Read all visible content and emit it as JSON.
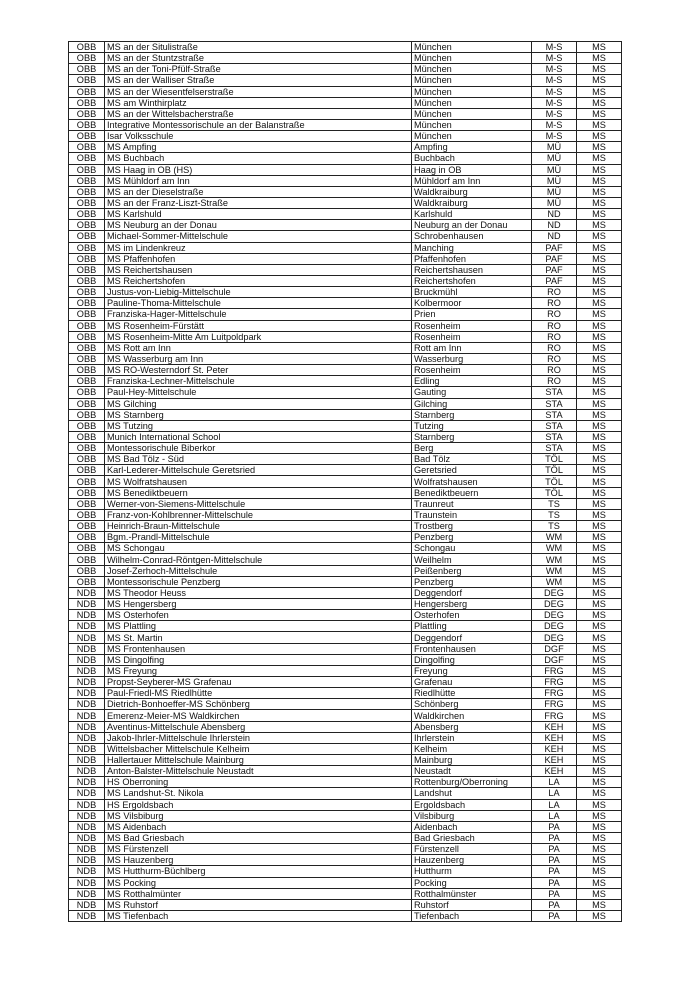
{
  "table": {
    "rows": [
      [
        "OBB",
        "MS an der Situlistraße",
        "München",
        "M-S",
        "MS"
      ],
      [
        "OBB",
        "MS an der Stuntzstraße",
        "München",
        "M-S",
        "MS"
      ],
      [
        "OBB",
        "MS an der Toni-Pfülf-Straße",
        "München",
        "M-S",
        "MS"
      ],
      [
        "OBB",
        "MS an der Walliser Straße",
        "München",
        "M-S",
        "MS"
      ],
      [
        "OBB",
        "MS an der Wiesentfelserstraße",
        "München",
        "M-S",
        "MS"
      ],
      [
        "OBB",
        "MS am Winthirplatz",
        "München",
        "M-S",
        "MS"
      ],
      [
        "OBB",
        "MS an der Wittelsbacherstraße",
        "München",
        "M-S",
        "MS"
      ],
      [
        "OBB",
        "Integrative Montessorischule an der Balanstraße",
        "München",
        "M-S",
        "MS"
      ],
      [
        "OBB",
        "Isar Volksschule",
        "München",
        "M-S",
        "MS"
      ],
      [
        "OBB",
        "MS Ampfing",
        "Ampfing",
        "MÜ",
        "MS"
      ],
      [
        "OBB",
        "MS Buchbach",
        "Buchbach",
        "MÜ",
        "MS"
      ],
      [
        "OBB",
        "MS Haag in OB (HS)",
        "Haag in OB",
        "MÜ",
        "MS"
      ],
      [
        "OBB",
        "MS Mühldorf am Inn",
        "Mühldorf am Inn",
        "MÜ",
        "MS"
      ],
      [
        "OBB",
        "MS an der Dieselstraße",
        "Waldkraiburg",
        "MÜ",
        "MS"
      ],
      [
        "OBB",
        "MS an der Franz-Liszt-Straße",
        "Waldkraiburg",
        "MÜ",
        "MS"
      ],
      [
        "OBB",
        "MS Karlshuld",
        "Karlshuld",
        "ND",
        "MS"
      ],
      [
        "OBB",
        "MS Neuburg an der Donau",
        "Neuburg an der Donau",
        "ND",
        "MS"
      ],
      [
        "OBB",
        "Michael-Sommer-Mittelschule",
        "Schrobenhausen",
        "ND",
        "MS"
      ],
      [
        "OBB",
        "MS im Lindenkreuz",
        "Manching",
        "PAF",
        "MS"
      ],
      [
        "OBB",
        "MS Pfaffenhofen",
        "Pfaffenhofen",
        "PAF",
        "MS"
      ],
      [
        "OBB",
        "MS Reichertshausen",
        "Reichertshausen",
        "PAF",
        "MS"
      ],
      [
        "OBB",
        "MS Reichertshofen",
        "Reichertshofen",
        "PAF",
        "MS"
      ],
      [
        "OBB",
        "Justus-von-Liebig-Mittelschule",
        "Bruckmühl",
        "RO",
        "MS"
      ],
      [
        "OBB",
        "Pauline-Thoma-Mittelschule",
        "Kolbermoor",
        "RO",
        "MS"
      ],
      [
        "OBB",
        "Franziska-Hager-Mittelschule",
        "Prien",
        "RO",
        "MS"
      ],
      [
        "OBB",
        "MS Rosenheim-Fürstätt",
        "Rosenheim",
        "RO",
        "MS"
      ],
      [
        "OBB",
        "MS Rosenheim-Mitte Am Luitpoldpark",
        "Rosenheim",
        "RO",
        "MS"
      ],
      [
        "OBB",
        "MS Rott am Inn",
        "Rott am Inn",
        "RO",
        "MS"
      ],
      [
        "OBB",
        "MS Wasserburg am Inn",
        "Wasserburg",
        "RO",
        "MS"
      ],
      [
        "OBB",
        "MS RO-Westerndorf St. Peter",
        "Rosenheim",
        "RO",
        "MS"
      ],
      [
        "OBB",
        "Franziska-Lechner-Mittelschule",
        "Edling",
        "RO",
        "MS"
      ],
      [
        "OBB",
        "Paul-Hey-Mittelschule",
        "Gauting",
        "STA",
        "MS"
      ],
      [
        "OBB",
        "MS Gilching",
        "Gilching",
        "STA",
        "MS"
      ],
      [
        "OBB",
        "MS Starnberg",
        "Starnberg",
        "STA",
        "MS"
      ],
      [
        "OBB",
        "MS Tutzing",
        "Tutzing",
        "STA",
        "MS"
      ],
      [
        "OBB",
        "Munich International School",
        "Starnberg",
        "STA",
        "MS"
      ],
      [
        "OBB",
        "Montessorischule Biberkor",
        "Berg",
        "STA",
        "MS"
      ],
      [
        "OBB",
        "MS Bad Tölz - Süd",
        "Bad Tölz",
        "TÖL",
        "MS"
      ],
      [
        "OBB",
        "Karl-Lederer-Mittelschule Geretsried",
        "Geretsried",
        "TÖL",
        "MS"
      ],
      [
        "OBB",
        "MS Wolfratshausen",
        "Wolfratshausen",
        "TÖL",
        "MS"
      ],
      [
        "OBB",
        "MS Benediktbeuern",
        "Benediktbeuern",
        "TÖL",
        "MS"
      ],
      [
        "OBB",
        "Werner-von-Siemens-Mittelschule",
        "Traunreut",
        "TS",
        "MS"
      ],
      [
        "OBB",
        "Franz-von-Kohlbrenner-Mittelschule",
        "Traunstein",
        "TS",
        "MS"
      ],
      [
        "OBB",
        "Heinrich-Braun-Mittelschule",
        "Trostberg",
        "TS",
        "MS"
      ],
      [
        "OBB",
        "Bgm.-Prandl-Mittelschule",
        "Penzberg",
        "WM",
        "MS"
      ],
      [
        "OBB",
        "MS Schongau",
        "Schongau",
        "WM",
        "MS"
      ],
      [
        "OBB",
        "Wilhelm-Conrad-Röntgen-Mittelschule",
        "Weilhelm",
        "WM",
        "MS"
      ],
      [
        "OBB",
        "Josef-Zerhoch-Mittelschule",
        "Peißenberg",
        "WM",
        "MS"
      ],
      [
        "OBB",
        "Montessorischule Penzberg",
        "Penzberg",
        "WM",
        "MS"
      ],
      [
        "NDB",
        "MS Theodor Heuss",
        "Deggendorf",
        "DEG",
        "MS"
      ],
      [
        "NDB",
        "MS Hengersberg",
        "Hengersberg",
        "DEG",
        "MS"
      ],
      [
        "NDB",
        "MS Osterhofen",
        "Osterhofen",
        "DEG",
        "MS"
      ],
      [
        "NDB",
        "MS Plattling",
        "Plattling",
        "DEG",
        "MS"
      ],
      [
        "NDB",
        "MS St. Martin",
        "Deggendorf",
        "DEG",
        "MS"
      ],
      [
        "NDB",
        "MS Frontenhausen",
        "Frontenhausen",
        "DGF",
        "MS"
      ],
      [
        "NDB",
        "MS Dingolfing",
        "Dingolfing",
        "DGF",
        "MS"
      ],
      [
        "NDB",
        "MS Freyung",
        "Freyung",
        "FRG",
        "MS"
      ],
      [
        "NDB",
        "Propst-Seyberer-MS Grafenau",
        "Grafenau",
        "FRG",
        "MS"
      ],
      [
        "NDB",
        "Paul-Friedl-MS Riedlhütte",
        "Riedlhütte",
        "FRG",
        "MS"
      ],
      [
        "NDB",
        "Dietrich-Bonhoeffer-MS Schönberg",
        "Schönberg",
        "FRG",
        "MS"
      ],
      [
        "NDB",
        "Emerenz-Meier-MS Waldkirchen",
        "Waldkirchen",
        "FRG",
        "MS"
      ],
      [
        "NDB",
        "Aventinus-Mittelschule Abensberg",
        "Abensberg",
        "KEH",
        "MS"
      ],
      [
        "NDB",
        "Jakob-Ihrler-Mittelschule Ihrlerstein",
        "Ihrlerstein",
        "KEH",
        "MS"
      ],
      [
        "NDB",
        "Wittelsbacher Mittelschule Kelheim",
        "Kelheim",
        "KEH",
        "MS"
      ],
      [
        "NDB",
        "Hallertauer Mittelschule Mainburg",
        "Mainburg",
        "KEH",
        "MS"
      ],
      [
        "NDB",
        "Anton-Balster-Mittelschule Neustadt",
        "Neustadt",
        "KEH",
        "MS"
      ],
      [
        "NDB",
        "HS Oberroning",
        "Rottenburg/Oberroning",
        "LA",
        "MS"
      ],
      [
        "NDB",
        "MS Landshut-St. Nikola",
        "Landshut",
        "LA",
        "MS"
      ],
      [
        "NDB",
        "HS Ergoldsbach",
        "Ergoldsbach",
        "LA",
        "MS"
      ],
      [
        "NDB",
        "MS Vilsbiburg",
        "Vilsbiburg",
        "LA",
        "MS"
      ],
      [
        "NDB",
        "MS Aidenbach",
        "Aidenbach",
        "PA",
        "MS"
      ],
      [
        "NDB",
        "MS Bad Griesbach",
        "Bad Griesbach",
        "PA",
        "MS"
      ],
      [
        "NDB",
        "MS Fürstenzell",
        "Fürstenzell",
        "PA",
        "MS"
      ],
      [
        "NDB",
        "MS Hauzenberg",
        "Hauzenberg",
        "PA",
        "MS"
      ],
      [
        "NDB",
        "MS Hutthurm-Büchlberg",
        "Hutthurm",
        "PA",
        "MS"
      ],
      [
        "NDB",
        "MS Pocking",
        "Pocking",
        "PA",
        "MS"
      ],
      [
        "NDB",
        "MS Rotthalmünter",
        "Rotthalmünster",
        "PA",
        "MS"
      ],
      [
        "NDB",
        "MS Ruhstorf",
        "Ruhstorf",
        "PA",
        "MS"
      ],
      [
        "NDB",
        "MS Tiefenbach",
        "Tiefenbach",
        "PA",
        "MS"
      ]
    ]
  }
}
